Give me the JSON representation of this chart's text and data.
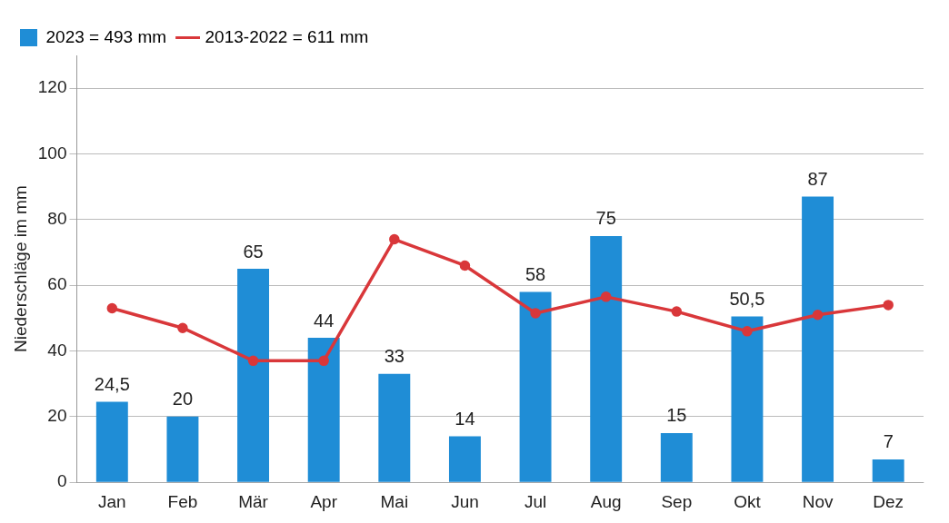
{
  "chart_data": {
    "type": "bar",
    "ylabel": "Niederschläge im mm",
    "categories": [
      "Jan",
      "Feb",
      "Mär",
      "Apr",
      "Mai",
      "Jun",
      "Jul",
      "Aug",
      "Sep",
      "Okt",
      "Nov",
      "Dez"
    ],
    "series": [
      {
        "name": "2023 = 493 mm",
        "color": "#1f8dd6",
        "values": [
          24.5,
          20,
          65,
          44,
          33,
          14,
          58,
          75,
          15,
          50.5,
          87,
          7
        ],
        "value_labels": [
          "24,5",
          "20",
          "65",
          "44",
          "33",
          "14",
          "58",
          "75",
          "15",
          "50,5",
          "87",
          "7"
        ]
      },
      {
        "name": "2013-2022 = 611 mm",
        "type": "line",
        "color": "#d9373a",
        "marker": "circle",
        "values": [
          53,
          47,
          37,
          37,
          74,
          66,
          51.5,
          56.5,
          52,
          46,
          51,
          54
        ]
      }
    ],
    "ylim": [
      0,
      130
    ],
    "yticks": [
      0,
      20,
      40,
      60,
      80,
      100,
      120
    ],
    "grid": "y",
    "legend": "top left"
  }
}
